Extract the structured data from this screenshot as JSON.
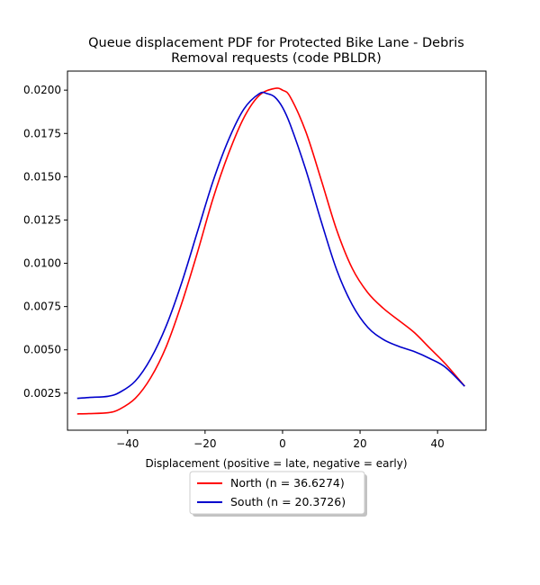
{
  "chart_data": {
    "type": "line",
    "title_line1": "Queue displacement PDF for Protected Bike Lane - Debris",
    "title_line2": "Removal  requests (code PBLDR)",
    "xlabel": "Displacement (positive = late, negative = early)",
    "ylabel": "",
    "xlim": [
      -55.5,
      52.5
    ],
    "ylim": [
      0.00036,
      0.0211
    ],
    "x_ticks": [
      -40,
      -20,
      0,
      20,
      40
    ],
    "x_tick_labels": [
      "−40",
      "−20",
      "0",
      "20",
      "40"
    ],
    "y_ticks": [
      0.0025,
      0.005,
      0.0075,
      0.01,
      0.0125,
      0.015,
      0.0175,
      0.02
    ],
    "y_tick_labels": [
      "0.0025",
      "0.0050",
      "0.0075",
      "0.0100",
      "0.0125",
      "0.0150",
      "0.0175",
      "0.0200"
    ],
    "grid": false,
    "legend_position": "below-center",
    "series": [
      {
        "name": "North (n = 36.6274)",
        "color": "#ff0000",
        "x": [
          -53,
          -50,
          -45,
          -42,
          -38,
          -34,
          -30,
          -26,
          -22,
          -18,
          -14,
          -10,
          -6,
          -2,
          0,
          2,
          6,
          10,
          14,
          18,
          22,
          26,
          30,
          34,
          38,
          42,
          47
        ],
        "y": [
          0.0013,
          0.00132,
          0.00137,
          0.00158,
          0.0022,
          0.0034,
          0.0052,
          0.0077,
          0.0106,
          0.0137,
          0.0163,
          0.0184,
          0.0197,
          0.0201,
          0.02,
          0.0196,
          0.0176,
          0.0148,
          0.0119,
          0.0097,
          0.0083,
          0.0074,
          0.0067,
          0.006,
          0.0051,
          0.0042,
          0.0029
        ]
      },
      {
        "name": "South (n = 20.3726)",
        "color": "#0000cc",
        "x": [
          -53,
          -50,
          -45,
          -42,
          -38,
          -34,
          -30,
          -26,
          -22,
          -18,
          -14,
          -10,
          -6,
          -4,
          -2,
          0,
          2,
          6,
          10,
          14,
          18,
          22,
          26,
          30,
          34,
          38,
          42,
          47
        ],
        "y": [
          0.0022,
          0.00225,
          0.00232,
          0.00255,
          0.0032,
          0.0045,
          0.0064,
          0.0089,
          0.0118,
          0.0147,
          0.0171,
          0.0189,
          0.0198,
          0.0198,
          0.0196,
          0.019,
          0.018,
          0.0154,
          0.0124,
          0.0096,
          0.0076,
          0.0063,
          0.0056,
          0.0052,
          0.0049,
          0.0045,
          0.004,
          0.0029
        ]
      }
    ]
  }
}
